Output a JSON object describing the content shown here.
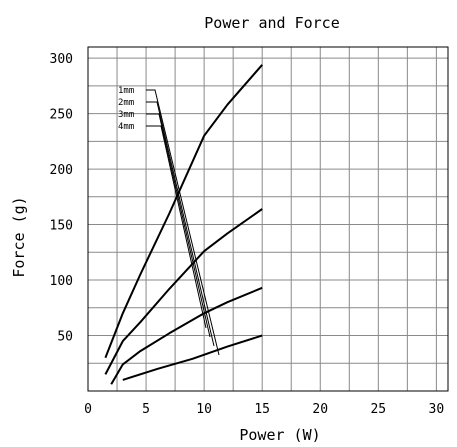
{
  "chart_data": {
    "type": "line",
    "title": "Power and Force",
    "xlabel": "Power (W)",
    "ylabel": "Force (g)",
    "xlim": [
      0,
      31
    ],
    "ylim": [
      0,
      310
    ],
    "x_ticks": [
      0,
      5,
      10,
      15,
      20,
      25,
      30
    ],
    "y_ticks": [
      50,
      100,
      150,
      200,
      250,
      300
    ],
    "grid": true,
    "series": [
      {
        "name": "1mm",
        "x": [
          1.5,
          3,
          4.5,
          7,
          10,
          12,
          15
        ],
        "y": [
          30,
          70,
          105,
          160,
          230,
          258,
          294
        ]
      },
      {
        "name": "2mm",
        "x": [
          1.5,
          3,
          4.5,
          7,
          10,
          12,
          15
        ],
        "y": [
          15,
          45,
          62,
          92,
          126,
          142,
          164
        ]
      },
      {
        "name": "3mm",
        "x": [
          2,
          3,
          4.5,
          7,
          10,
          12,
          15
        ],
        "y": [
          6,
          24,
          36,
          52,
          70,
          80,
          93
        ]
      },
      {
        "name": "4mm",
        "x": [
          3,
          6,
          9,
          12,
          15
        ],
        "y": [
          10,
          20,
          29,
          40,
          50
        ]
      }
    ]
  }
}
